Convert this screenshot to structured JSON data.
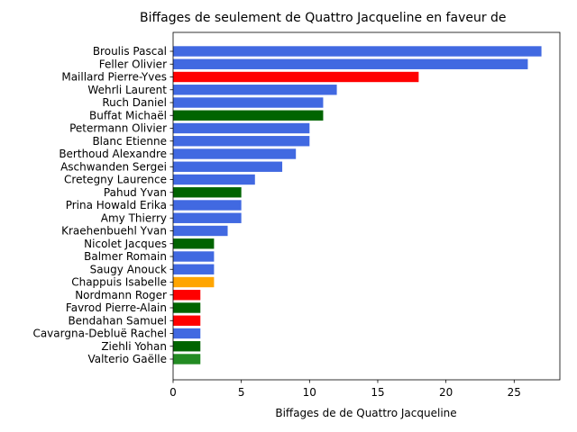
{
  "chart_data": {
    "type": "bar",
    "orientation": "horizontal",
    "title": "Biffages de seulement de Quattro Jacqueline en faveur de",
    "xlabel": "Biffages de de Quattro Jacqueline",
    "ylabel": "",
    "xlim": [
      0,
      28.35
    ],
    "xticks": [
      0,
      5,
      10,
      15,
      20,
      25
    ],
    "grid": false,
    "bars": [
      {
        "label": "Broulis Pascal",
        "value": 27,
        "color": "#4169e1"
      },
      {
        "label": "Feller Olivier",
        "value": 26,
        "color": "#4169e1"
      },
      {
        "label": "Maillard Pierre-Yves",
        "value": 18,
        "color": "#ff0000"
      },
      {
        "label": "Wehrli Laurent",
        "value": 12,
        "color": "#4169e1"
      },
      {
        "label": "Ruch Daniel",
        "value": 11,
        "color": "#4169e1"
      },
      {
        "label": "Buffat Michaël",
        "value": 11,
        "color": "#006400"
      },
      {
        "label": "Petermann Olivier",
        "value": 10,
        "color": "#4169e1"
      },
      {
        "label": "Blanc Etienne",
        "value": 10,
        "color": "#4169e1"
      },
      {
        "label": "Berthoud Alexandre",
        "value": 9,
        "color": "#4169e1"
      },
      {
        "label": "Aschwanden Sergei",
        "value": 8,
        "color": "#4169e1"
      },
      {
        "label": "Cretegny Laurence",
        "value": 6,
        "color": "#4169e1"
      },
      {
        "label": "Pahud Yvan",
        "value": 5,
        "color": "#006400"
      },
      {
        "label": "Prina Howald Erika",
        "value": 5,
        "color": "#4169e1"
      },
      {
        "label": "Amy Thierry",
        "value": 5,
        "color": "#4169e1"
      },
      {
        "label": "Kraehenbuehl Yvan",
        "value": 4,
        "color": "#4169e1"
      },
      {
        "label": "Nicolet Jacques",
        "value": 3,
        "color": "#006400"
      },
      {
        "label": "Balmer Romain",
        "value": 3,
        "color": "#4169e1"
      },
      {
        "label": "Saugy Anouck",
        "value": 3,
        "color": "#4169e1"
      },
      {
        "label": "Chappuis Isabelle",
        "value": 3,
        "color": "#ffa500"
      },
      {
        "label": "Nordmann Roger",
        "value": 2,
        "color": "#ff0000"
      },
      {
        "label": "Favrod Pierre-Alain",
        "value": 2,
        "color": "#006400"
      },
      {
        "label": "Bendahan Samuel",
        "value": 2,
        "color": "#ff0000"
      },
      {
        "label": "Cavargna-Debluë Rachel",
        "value": 2,
        "color": "#4169e1"
      },
      {
        "label": "Ziehli Yohan",
        "value": 2,
        "color": "#006400"
      },
      {
        "label": "Valterio Gaëlle",
        "value": 2,
        "color": "#228b22"
      }
    ]
  }
}
